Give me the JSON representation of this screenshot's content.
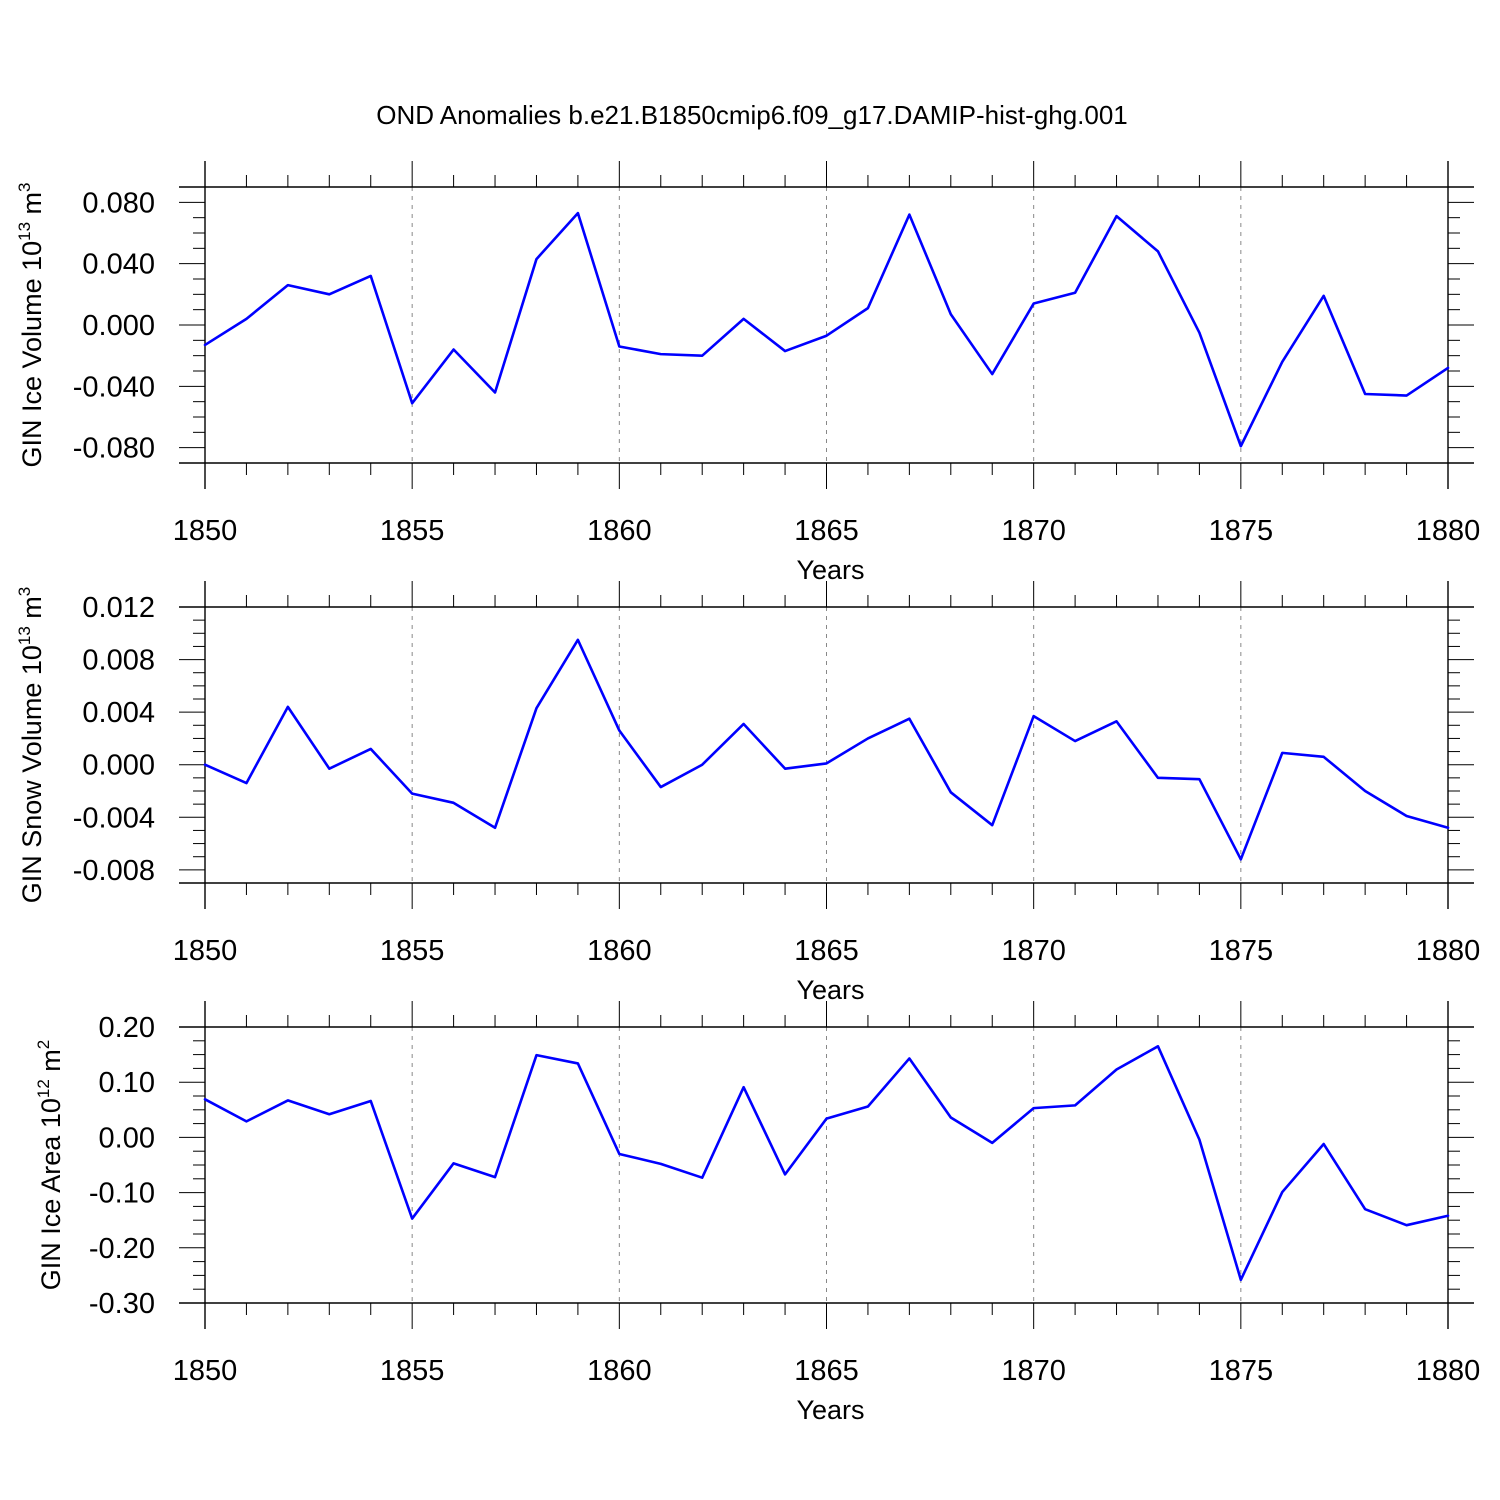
{
  "figure_title": "OND Anomalies b.e21.B1850cmip6.f09_g17.DAMIP-hist-ghg.001",
  "colors": {
    "series": "#0000ff",
    "frame": "#000000",
    "grid": "#888888"
  },
  "chart_data": [
    {
      "type": "line",
      "name": "ice-volume",
      "title": "",
      "xlabel": "Years",
      "ylabel": {
        "base": "GIN Ice Volume 10",
        "exp": "13",
        "unit": " m",
        "unit_exp": "3"
      },
      "xlim": [
        1850,
        1880
      ],
      "ylim": [
        -0.09,
        0.09
      ],
      "xticks": [
        1850,
        1855,
        1860,
        1865,
        1870,
        1875,
        1880
      ],
      "xtick_labels": [
        "1850",
        "1855",
        "1860",
        "1865",
        "1870",
        "1875",
        "1880"
      ],
      "yticks": [
        -0.08,
        -0.04,
        0.0,
        0.04,
        0.08
      ],
      "ytick_labels": [
        "-0.080",
        "-0.040",
        "0.000",
        "0.040",
        "0.080"
      ],
      "grid_x": [
        1855,
        1860,
        1865,
        1870,
        1875
      ],
      "x": [
        1850,
        1851,
        1852,
        1853,
        1854,
        1855,
        1856,
        1857,
        1858,
        1859,
        1860,
        1861,
        1862,
        1863,
        1864,
        1865,
        1866,
        1867,
        1868,
        1869,
        1870,
        1871,
        1872,
        1873,
        1874,
        1875,
        1876,
        1877,
        1878,
        1879,
        1880
      ],
      "series": [
        {
          "name": "GIN Ice Volume",
          "values": [
            -0.013,
            0.004,
            0.026,
            0.02,
            0.032,
            -0.051,
            -0.016,
            -0.044,
            0.043,
            0.073,
            -0.014,
            -0.019,
            -0.02,
            0.004,
            -0.017,
            -0.007,
            0.011,
            0.072,
            0.007,
            -0.032,
            0.014,
            0.021,
            0.071,
            0.048,
            -0.005,
            -0.079,
            -0.024,
            0.019,
            -0.045,
            -0.046,
            -0.028
          ]
        }
      ]
    },
    {
      "type": "line",
      "name": "snow-volume",
      "title": "",
      "xlabel": "Years",
      "ylabel": {
        "base": "GIN Snow Volume 10",
        "exp": "13",
        "unit": " m",
        "unit_exp": "3"
      },
      "xlim": [
        1850,
        1880
      ],
      "ylim": [
        -0.009,
        0.012
      ],
      "xticks": [
        1850,
        1855,
        1860,
        1865,
        1870,
        1875,
        1880
      ],
      "xtick_labels": [
        "1850",
        "1855",
        "1860",
        "1865",
        "1870",
        "1875",
        "1880"
      ],
      "yticks": [
        -0.008,
        -0.004,
        0.0,
        0.004,
        0.008,
        0.012
      ],
      "ytick_labels": [
        "-0.008",
        "-0.004",
        "0.000",
        "0.004",
        "0.008",
        "0.012"
      ],
      "grid_x": [
        1855,
        1860,
        1865,
        1870,
        1875
      ],
      "x": [
        1850,
        1851,
        1852,
        1853,
        1854,
        1855,
        1856,
        1857,
        1858,
        1859,
        1860,
        1861,
        1862,
        1863,
        1864,
        1865,
        1866,
        1867,
        1868,
        1869,
        1870,
        1871,
        1872,
        1873,
        1874,
        1875,
        1876,
        1877,
        1878,
        1879,
        1880
      ],
      "series": [
        {
          "name": "GIN Snow Volume",
          "values": [
            0.0,
            -0.0014,
            0.0044,
            -0.0003,
            0.0012,
            -0.0022,
            -0.0029,
            -0.0048,
            0.0043,
            0.0095,
            0.0026,
            -0.0017,
            0.0,
            0.0031,
            -0.0003,
            0.0001,
            0.002,
            0.0035,
            -0.0021,
            -0.0046,
            0.0037,
            0.0018,
            0.0033,
            -0.001,
            -0.0011,
            -0.0072,
            0.0009,
            0.0006,
            -0.002,
            -0.0039,
            -0.0048
          ]
        }
      ]
    },
    {
      "type": "line",
      "name": "ice-area",
      "title": "",
      "xlabel": "Years",
      "ylabel": {
        "base": "GIN Ice Area 10",
        "exp": "12",
        "unit": " m",
        "unit_exp": "2"
      },
      "xlim": [
        1850,
        1880
      ],
      "ylim": [
        -0.3,
        0.2
      ],
      "xticks": [
        1850,
        1855,
        1860,
        1865,
        1870,
        1875,
        1880
      ],
      "xtick_labels": [
        "1850",
        "1855",
        "1860",
        "1865",
        "1870",
        "1875",
        "1880"
      ],
      "yticks": [
        -0.3,
        -0.2,
        -0.1,
        0.0,
        0.1,
        0.2
      ],
      "ytick_labels": [
        "-0.30",
        "-0.20",
        "-0.10",
        "0.00",
        "0.10",
        "0.20"
      ],
      "grid_x": [
        1855,
        1860,
        1865,
        1870,
        1875
      ],
      "x": [
        1850,
        1851,
        1852,
        1853,
        1854,
        1855,
        1856,
        1857,
        1858,
        1859,
        1860,
        1861,
        1862,
        1863,
        1864,
        1865,
        1866,
        1867,
        1868,
        1869,
        1870,
        1871,
        1872,
        1873,
        1874,
        1875,
        1876,
        1877,
        1878,
        1879,
        1880
      ],
      "series": [
        {
          "name": "GIN Ice Area",
          "values": [
            0.069,
            0.029,
            0.067,
            0.042,
            0.066,
            -0.147,
            -0.047,
            -0.072,
            0.149,
            0.134,
            -0.03,
            -0.048,
            -0.073,
            0.091,
            -0.067,
            0.034,
            0.056,
            0.143,
            0.036,
            -0.01,
            0.053,
            0.058,
            0.123,
            0.165,
            -0.004,
            -0.258,
            -0.099,
            -0.012,
            -0.13,
            -0.159,
            -0.142
          ]
        }
      ]
    }
  ]
}
